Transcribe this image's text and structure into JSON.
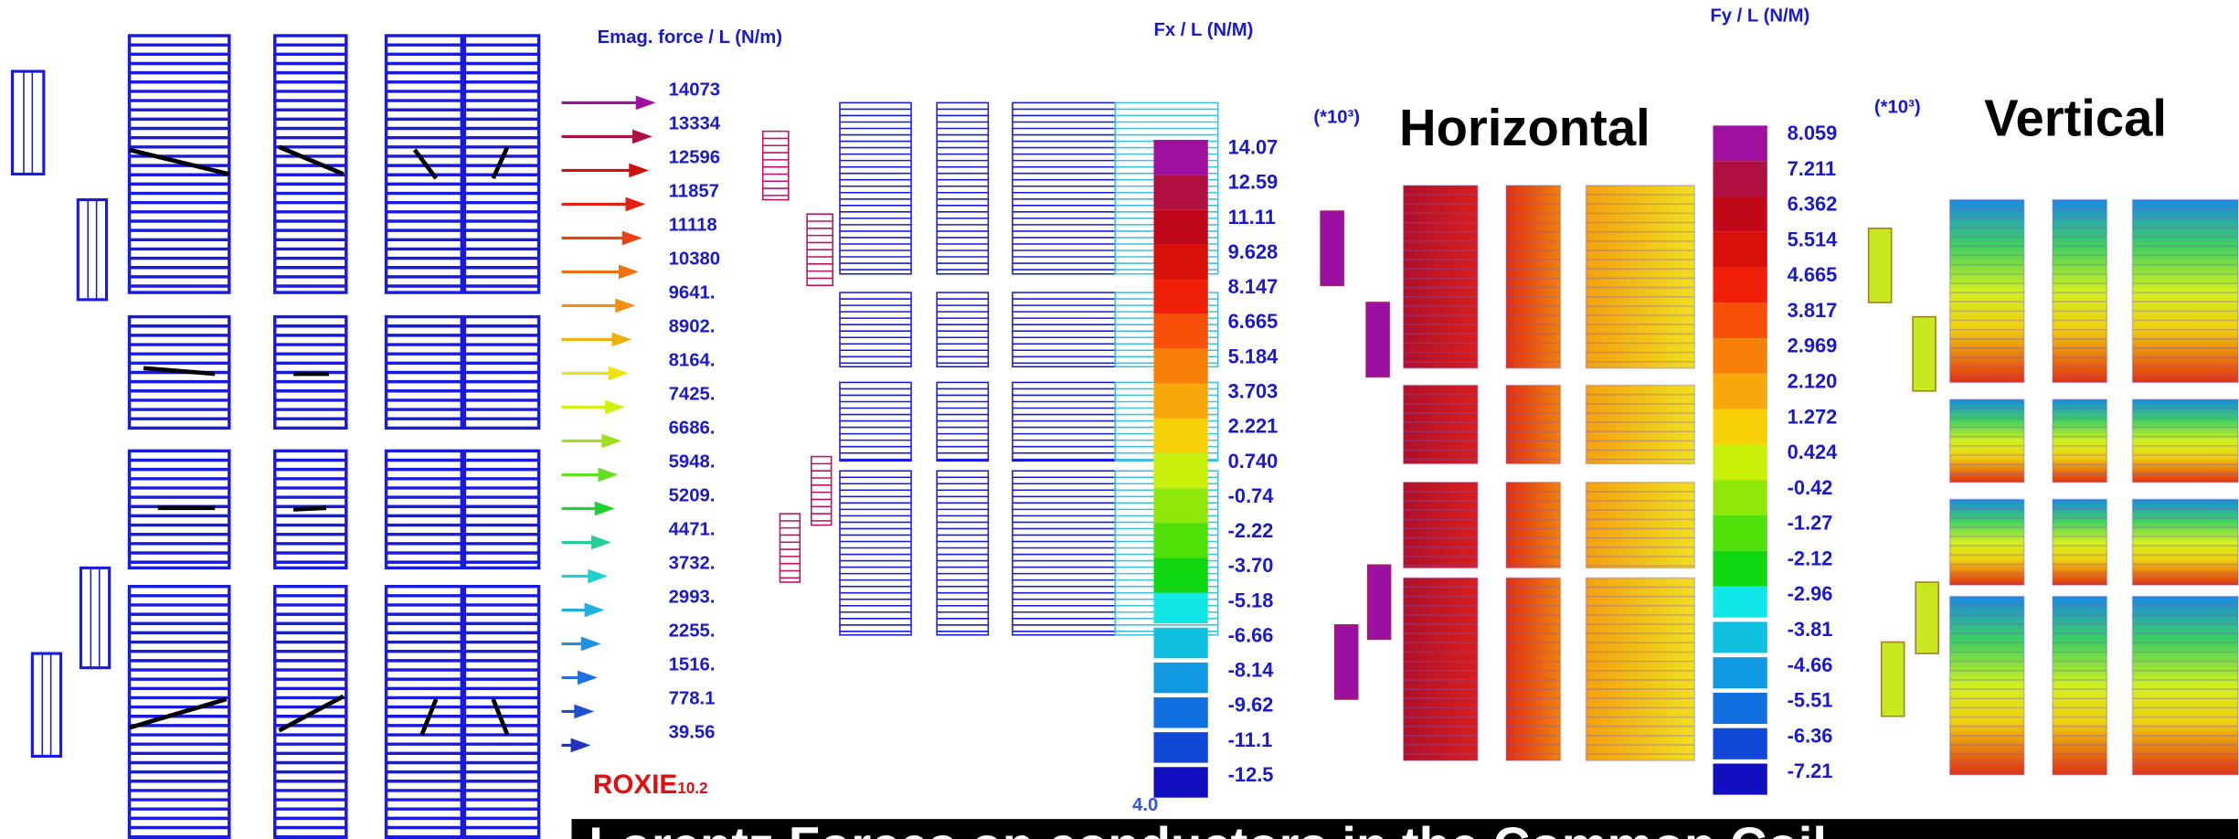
{
  "left_panel": {
    "title": "Emag. force / L (N/m)",
    "legend": [
      "14073",
      "13334",
      "12596",
      "11857",
      "11118",
      "10380",
      "9641.",
      "8902.",
      "8164.",
      "7425.",
      "6686.",
      "5948.",
      "5209.",
      "4471.",
      "3732.",
      "2993.",
      "2255.",
      "1516.",
      "778.1",
      "39.56"
    ],
    "logo": "ROXIE",
    "logo_version": "10.2"
  },
  "fx_panel": {
    "title": "Fx / L (N/M)",
    "multiplier": "(*10³)",
    "heading": "Horizontal",
    "scale": [
      "14.07",
      "12.59",
      "11.11",
      "9.628",
      "8.147",
      "6.665",
      "5.184",
      "3.703",
      "2.221",
      "0.740",
      "-0.74",
      "-2.22",
      "-3.70",
      "-5.18",
      "-6.66",
      "-8.14",
      "-9.62",
      "-11.1",
      "-12.5"
    ],
    "stub": "4.0"
  },
  "fy_panel": {
    "title": "Fy / L (N/M)",
    "multiplier": "(*10³)",
    "heading": "Vertical",
    "scale": [
      "8.059",
      "7.211",
      "6.362",
      "5.514",
      "4.665",
      "3.817",
      "2.969",
      "2.120",
      "1.272",
      "0.424",
      "-0.42",
      "-1.27",
      "-2.12",
      "-2.96",
      "-3.81",
      "-4.66",
      "-5.51",
      "-6.36",
      "-7.21"
    ]
  },
  "footer": "Lorentz Forces on conductors in the Common Coil"
}
